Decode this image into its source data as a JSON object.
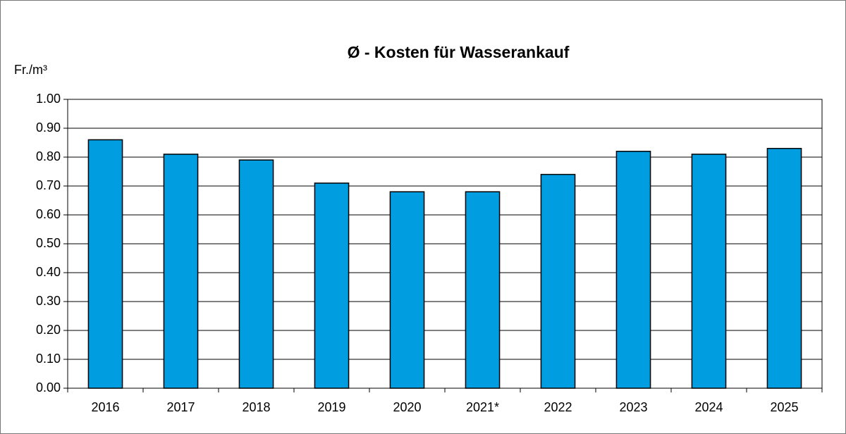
{
  "chart_data": {
    "type": "bar",
    "title": "Ø - Kosten für Wasserankauf",
    "y_label": "Fr./m³",
    "categories": [
      "2016",
      "2017",
      "2018",
      "2019",
      "2020",
      "2021*",
      "2022",
      "2023",
      "2024",
      "2025"
    ],
    "values": [
      0.86,
      0.81,
      0.79,
      0.71,
      0.68,
      0.68,
      0.74,
      0.82,
      0.81,
      0.83
    ],
    "color": "#009ee0",
    "ylim": [
      0,
      1
    ],
    "yticks": [
      {
        "value": 0,
        "label": "0.00"
      },
      {
        "value": 0.1,
        "label": "0.10"
      },
      {
        "value": 0.2,
        "label": "0.20"
      },
      {
        "value": 0.3,
        "label": "0.30"
      },
      {
        "value": 0.4,
        "label": "0.40"
      },
      {
        "value": 0.5,
        "label": "0.50"
      },
      {
        "value": 0.6,
        "label": "0.60"
      },
      {
        "value": 0.7,
        "label": "0.70"
      },
      {
        "value": 0.8,
        "label": "0.80"
      },
      {
        "value": 0.9,
        "label": "0.90"
      },
      {
        "value": 1,
        "label": "1.00"
      }
    ],
    "grid": true
  }
}
